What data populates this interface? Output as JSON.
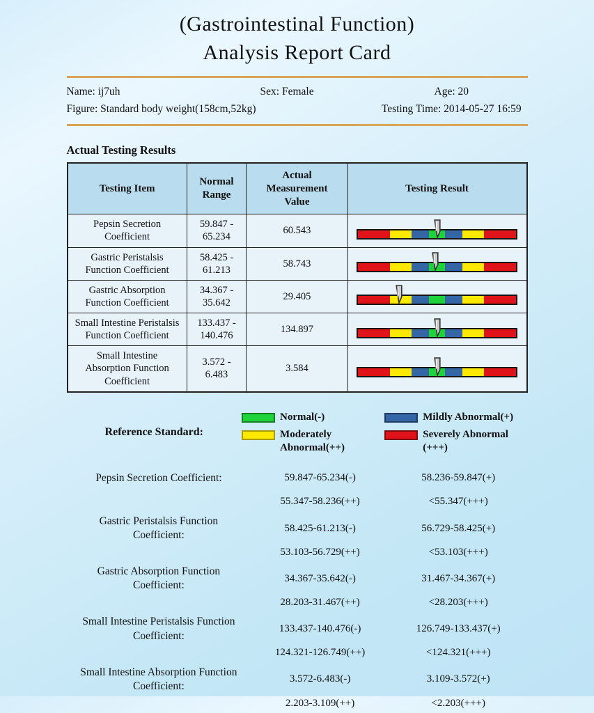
{
  "title": {
    "line1": "(Gastrointestinal Function)",
    "line2": "Analysis Report Card"
  },
  "patient": {
    "name": "Name: ij7uh",
    "sex": "Sex: Female",
    "age": "Age: 20",
    "figure": "Figure: Standard body weight(158cm,52kg)",
    "testing_time": "Testing Time: 2014-05-27 16:59"
  },
  "results": {
    "heading": "Actual Testing Results",
    "columns": [
      "Testing Item",
      "Normal Range",
      "Actual Measurement Value",
      "Testing Result"
    ],
    "bar_segments": [
      {
        "level": "severe",
        "pct": 20
      },
      {
        "level": "moderate",
        "pct": 14
      },
      {
        "level": "mild",
        "pct": 11
      },
      {
        "level": "normal",
        "pct": 10
      },
      {
        "level": "mild",
        "pct": 11
      },
      {
        "level": "moderate",
        "pct": 14
      },
      {
        "level": "severe",
        "pct": 20
      }
    ],
    "rows": [
      {
        "item": "Pepsin Secretion\nCoefficient",
        "range": "59.847 -\n65.234",
        "value": "60.543",
        "pointer_pct": 50
      },
      {
        "item": "Gastric Peristalsis\nFunction Coefficient",
        "range": "58.425 -\n61.213",
        "value": "58.743",
        "pointer_pct": 49
      },
      {
        "item": "Gastric Absorption\nFunction Coefficient",
        "range": "34.367 -\n35.642",
        "value": "29.405",
        "pointer_pct": 26
      },
      {
        "item": "Small Intestine Peristalsis\nFunction Coefficient",
        "range": "133.437 -\n140.476",
        "value": "134.897",
        "pointer_pct": 50
      },
      {
        "item": "Small Intestine\nAbsorption Function\nCoefficient",
        "range": "3.572 -\n6.483",
        "value": "3.584",
        "pointer_pct": 50
      }
    ]
  },
  "legend": {
    "heading": "Reference Standard:",
    "items": [
      {
        "level": "normal",
        "label": "Normal(-)",
        "column": 1
      },
      {
        "level": "moderate",
        "label": "Moderately\nAbnormal(++)",
        "column": 1
      },
      {
        "level": "mild",
        "label": "Mildly Abnormal(+)",
        "column": 2
      },
      {
        "level": "severe",
        "label": "Severely Abnormal\n(+++)",
        "column": 2
      }
    ]
  },
  "levels": {
    "normal": {
      "fill": "#1ed33a",
      "border": "#157f22"
    },
    "mild": {
      "fill": "#3465a4",
      "border": "#1e3c64"
    },
    "moderate": {
      "fill": "#ffe900",
      "border": "#a89a00"
    },
    "severe": {
      "fill": "#e0121a",
      "border": "#7e0b0f"
    }
  },
  "reference_list": [
    {
      "label": "Pepsin Secretion Coefficient:",
      "normal": "59.847-65.234(-)",
      "mild": "58.236-59.847(+)",
      "moderate": "55.347-58.236(++)",
      "severe": "<55.347(+++)"
    },
    {
      "label": "Gastric Peristalsis Function\nCoefficient:",
      "normal": "58.425-61.213(-)",
      "mild": "56.729-58.425(+)",
      "moderate": "53.103-56.729(++)",
      "severe": "<53.103(+++)"
    },
    {
      "label": "Gastric Absorption Function\nCoefficient:",
      "normal": "34.367-35.642(-)",
      "mild": "31.467-34.367(+)",
      "moderate": "28.203-31.467(++)",
      "severe": "<28.203(+++)"
    },
    {
      "label": "Small Intestine Peristalsis Function\nCoefficient:",
      "normal": "133.437-140.476(-)",
      "mild": "126.749-133.437(+)",
      "moderate": "124.321-126.749(++)",
      "severe": "<124.321(+++)"
    },
    {
      "label": "Small Intestine Absorption Function\nCoefficient:",
      "normal": "3.572-6.483(-)",
      "mild": "3.109-3.572(+)",
      "moderate": "2.203-3.109(++)",
      "severe": "<2.203(+++)"
    }
  ],
  "divider_color": "#d9a55c"
}
